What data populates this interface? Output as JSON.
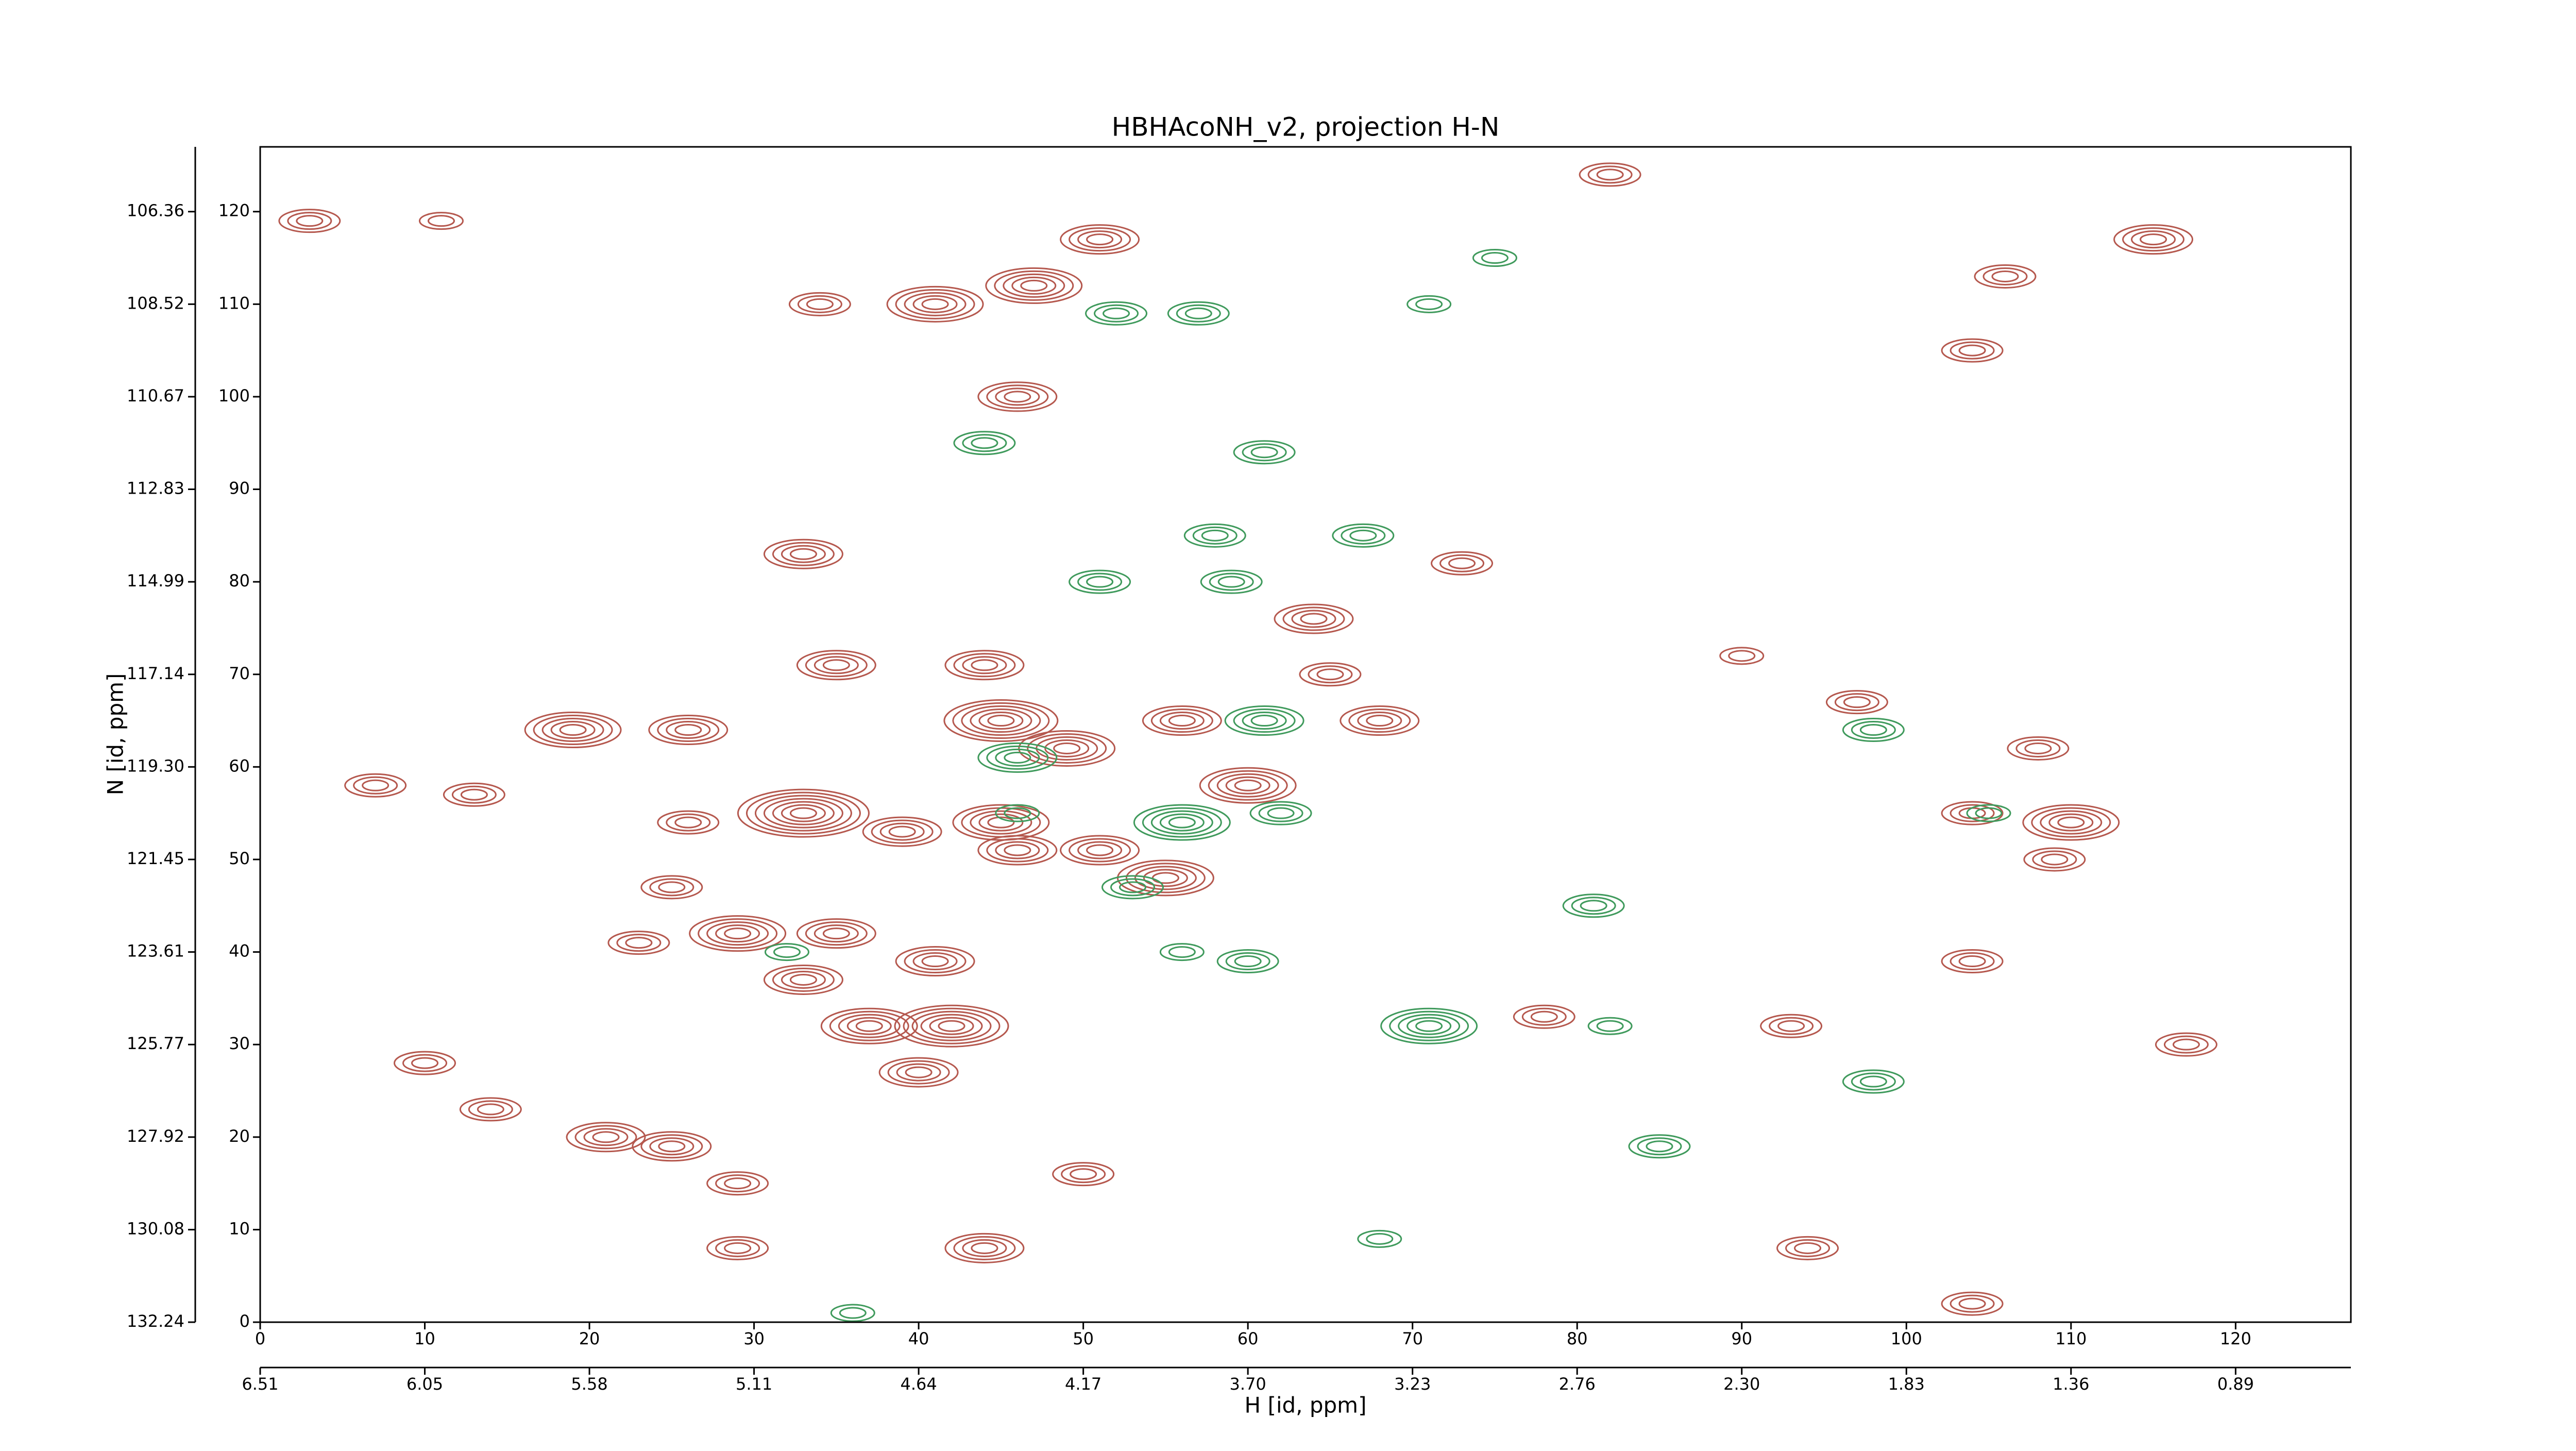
{
  "chart_data": {
    "type": "contour",
    "title": "HBHAcoNH_v2, projection H-N",
    "xlabel": "H [id, ppm]",
    "ylabel": "N [id, ppm]",
    "xlim": [
      0,
      127
    ],
    "ylim": [
      0,
      127
    ],
    "xticks": [
      0,
      10,
      20,
      30,
      40,
      50,
      60,
      70,
      80,
      90,
      100,
      110,
      120
    ],
    "yticks": [
      0,
      10,
      20,
      30,
      40,
      50,
      60,
      70,
      80,
      90,
      100,
      110,
      120
    ],
    "x2ticks": [
      {
        "value": 0,
        "label": "6.51"
      },
      {
        "value": 10,
        "label": "6.05"
      },
      {
        "value": 20,
        "label": "5.58"
      },
      {
        "value": 30,
        "label": "5.11"
      },
      {
        "value": 40,
        "label": "4.64"
      },
      {
        "value": 50,
        "label": "4.17"
      },
      {
        "value": 60,
        "label": "3.70"
      },
      {
        "value": 70,
        "label": "3.23"
      },
      {
        "value": 80,
        "label": "2.76"
      },
      {
        "value": 90,
        "label": "2.30"
      },
      {
        "value": 100,
        "label": "1.83"
      },
      {
        "value": 110,
        "label": "1.36"
      },
      {
        "value": 120,
        "label": "0.89"
      }
    ],
    "y2ticks": [
      {
        "value": 120,
        "label": "106.36"
      },
      {
        "value": 110,
        "label": "108.52"
      },
      {
        "value": 100,
        "label": "110.67"
      },
      {
        "value": 90,
        "label": "112.83"
      },
      {
        "value": 80,
        "label": "114.99"
      },
      {
        "value": 70,
        "label": "117.14"
      },
      {
        "value": 60,
        "label": "119.30"
      },
      {
        "value": 50,
        "label": "121.45"
      },
      {
        "value": 40,
        "label": "123.61"
      },
      {
        "value": 30,
        "label": "125.77"
      },
      {
        "value": 20,
        "label": "127.92"
      },
      {
        "value": 10,
        "label": "130.08"
      },
      {
        "value": 0,
        "label": "132.24"
      }
    ],
    "series": [
      {
        "color": "#b5584e",
        "x": [
          47,
          51,
          41,
          34,
          46,
          33,
          35,
          44,
          45,
          49,
          56,
          60,
          33,
          39,
          45,
          46,
          51,
          55,
          29,
          35,
          41,
          33,
          37,
          42,
          40,
          19,
          26,
          13,
          7,
          26,
          25,
          23,
          21,
          25,
          29,
          29,
          44,
          50,
          64,
          65,
          68,
          73,
          82,
          104,
          106,
          115,
          110,
          104,
          109,
          108,
          97,
          104,
          117,
          93,
          94,
          104,
          10,
          14,
          3,
          11,
          78,
          90
        ],
        "y": [
          112,
          117,
          110,
          110,
          100,
          83,
          71,
          71,
          65,
          62,
          65,
          58,
          55,
          53,
          54,
          51,
          51,
          48,
          42,
          42,
          39,
          37,
          32,
          32,
          27,
          64,
          64,
          57,
          58,
          54,
          47,
          41,
          20,
          19,
          15,
          8,
          8,
          16,
          76,
          70,
          65,
          82,
          124,
          105,
          113,
          117,
          54,
          55,
          50,
          62,
          67,
          39,
          30,
          32,
          8,
          2,
          28,
          23,
          119,
          119,
          33,
          72
        ],
        "levels": [
          5,
          4,
          5,
          3,
          4,
          4,
          4,
          4,
          6,
          5,
          4,
          5,
          7,
          4,
          5,
          4,
          4,
          5,
          5,
          4,
          4,
          4,
          5,
          6,
          4,
          5,
          4,
          3,
          3,
          3,
          3,
          3,
          4,
          4,
          3,
          3,
          4,
          3,
          4,
          3,
          4,
          3,
          3,
          3,
          3,
          4,
          5,
          3,
          3,
          3,
          3,
          3,
          3,
          3,
          3,
          3,
          3,
          3,
          3,
          2,
          3,
          2
        ]
      },
      {
        "color": "#3f9a5c",
        "x": [
          52,
          57,
          44,
          61,
          51,
          59,
          58,
          67,
          61,
          46,
          46,
          56,
          62,
          53,
          60,
          56,
          71,
          82,
          81,
          98,
          98,
          85,
          36,
          75,
          71,
          68,
          32,
          105
        ],
        "y": [
          109,
          109,
          95,
          94,
          80,
          80,
          85,
          85,
          65,
          61,
          55,
          54,
          55,
          47,
          39,
          40,
          32,
          32,
          45,
          64,
          26,
          19,
          1,
          115,
          110,
          9,
          40,
          55
        ],
        "levels": [
          3,
          3,
          3,
          3,
          3,
          3,
          3,
          3,
          4,
          4,
          2,
          5,
          3,
          3,
          3,
          2,
          5,
          2,
          3,
          3,
          3,
          3,
          2,
          2,
          2,
          2,
          2,
          2
        ]
      }
    ]
  }
}
